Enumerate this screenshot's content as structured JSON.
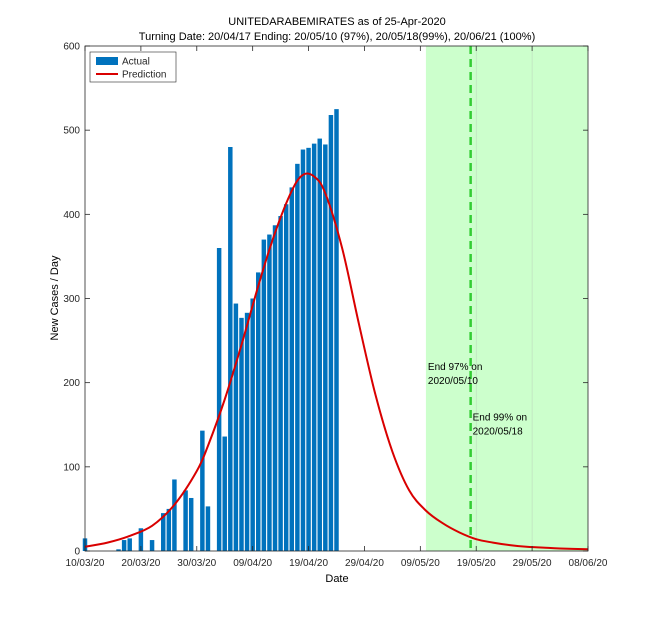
{
  "chart_data": {
    "type": "bar",
    "title": "UNITEDARABEMIRATES as of 25-Apr-2020",
    "subtitle": "Turning Date: 20/04/17  Ending: 20/05/10 (97%), 20/05/18(99%), 20/06/21 (100%)",
    "xlabel": "Date",
    "ylabel": "New Cases / Day",
    "ylim": [
      0,
      600
    ],
    "xlim": [
      "2020-03-10",
      "2020-06-08"
    ],
    "x_ticks": [
      "10/03/20",
      "20/03/20",
      "30/03/20",
      "09/04/20",
      "19/04/20",
      "29/04/20",
      "09/05/20",
      "19/05/20",
      "29/05/20",
      "08/06/20"
    ],
    "y_ticks": [
      "0",
      "100",
      "200",
      "300",
      "400",
      "500",
      "600"
    ],
    "legend": {
      "placement": "top-left",
      "entries": [
        "Actual",
        "Prediction"
      ]
    },
    "colors": {
      "actual": "#0072bd",
      "prediction": "#d90000",
      "ending_region": "#ccffcc",
      "ending_line": "#33cc33"
    },
    "series": [
      {
        "name": "Actual",
        "kind": "bar",
        "dates": [
          "2020-03-10",
          "2020-03-11",
          "2020-03-12",
          "2020-03-13",
          "2020-03-14",
          "2020-03-15",
          "2020-03-16",
          "2020-03-17",
          "2020-03-18",
          "2020-03-19",
          "2020-03-20",
          "2020-03-21",
          "2020-03-22",
          "2020-03-23",
          "2020-03-24",
          "2020-03-25",
          "2020-03-26",
          "2020-03-27",
          "2020-03-28",
          "2020-03-29",
          "2020-03-30",
          "2020-03-31",
          "2020-04-01",
          "2020-04-02",
          "2020-04-03",
          "2020-04-04",
          "2020-04-05",
          "2020-04-06",
          "2020-04-07",
          "2020-04-08",
          "2020-04-09",
          "2020-04-10",
          "2020-04-11",
          "2020-04-12",
          "2020-04-13",
          "2020-04-14",
          "2020-04-15",
          "2020-04-16",
          "2020-04-17",
          "2020-04-18",
          "2020-04-19",
          "2020-04-20",
          "2020-04-21",
          "2020-04-22",
          "2020-04-23",
          "2020-04-24",
          "2020-04-25"
        ],
        "values": [
          15,
          0,
          0,
          0,
          0,
          0,
          2,
          13,
          15,
          0,
          27,
          0,
          13,
          0,
          45,
          50,
          85,
          0,
          72,
          63,
          0,
          143,
          53,
          0,
          360,
          136,
          480,
          294,
          277,
          283,
          300,
          331,
          370,
          376,
          387,
          398,
          412,
          432,
          460,
          477,
          479,
          484,
          490,
          483,
          518,
          525,
          0
        ]
      },
      {
        "name": "Prediction",
        "kind": "line",
        "dates": [
          "2020-03-10",
          "2020-03-14",
          "2020-03-18",
          "2020-03-22",
          "2020-03-26",
          "2020-03-30",
          "2020-04-01",
          "2020-04-04",
          "2020-04-07",
          "2020-04-10",
          "2020-04-13",
          "2020-04-16",
          "2020-04-18",
          "2020-04-20",
          "2020-04-22",
          "2020-04-25",
          "2020-04-28",
          "2020-05-01",
          "2020-05-04",
          "2020-05-07",
          "2020-05-10",
          "2020-05-13",
          "2020-05-16",
          "2020-05-19",
          "2020-05-22",
          "2020-05-25",
          "2020-05-28",
          "2020-05-31",
          "2020-06-03",
          "2020-06-08"
        ],
        "values": [
          5,
          10,
          18,
          30,
          55,
          95,
          125,
          180,
          245,
          315,
          378,
          428,
          447,
          445,
          425,
          360,
          270,
          185,
          118,
          72,
          48,
          33,
          22,
          14,
          10,
          7,
          5,
          4,
          3,
          2
        ]
      }
    ],
    "vertical_markers": [
      {
        "date": "2020-05-10",
        "kind": "region_start"
      },
      {
        "date": "2020-05-18",
        "kind": "dashed_line"
      }
    ],
    "shaded_region": {
      "from": "2020-05-10",
      "to": "2020-06-08"
    },
    "annotations": [
      {
        "lines": [
          "End 97% on",
          "2020/05/10"
        ],
        "date": "2020-05-10",
        "value": 215
      },
      {
        "lines": [
          "End 99% on",
          "2020/05/18"
        ],
        "date": "2020-05-18",
        "value": 155
      }
    ]
  }
}
